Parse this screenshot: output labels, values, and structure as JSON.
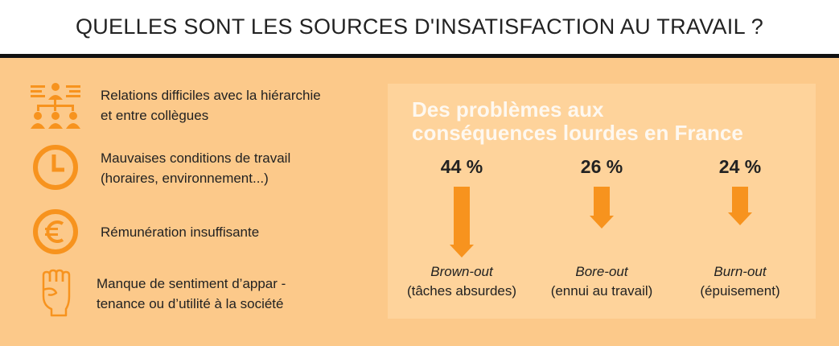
{
  "header": {
    "title": "QUELLES SONT LES SOURCES D'INSATISFACTION AU TRAVAIL ?"
  },
  "causes": [
    {
      "icon": "hierarchy-icon",
      "line1": "Relations difficiles avec la hiérarchie",
      "line2": "et entre collègues"
    },
    {
      "icon": "clock-icon",
      "line1": "Mauvaises conditions de travail",
      "line2": "(horaires, environnement...)"
    },
    {
      "icon": "euro-icon",
      "line1": "Rémunération insuffisante",
      "line2": ""
    },
    {
      "icon": "fist-icon",
      "line1": "Manque de sentiment d’appar -",
      "line2": "tenance ou d’utilité à la société"
    }
  ],
  "panel": {
    "title_line1": "Des problèmes aux",
    "title_line2": "conséquences lourdes en France"
  },
  "chart_data": {
    "type": "bar",
    "categories": [
      "Brown-out",
      "Bore-out",
      "Burn-out"
    ],
    "descriptions": [
      "(tâches absurdes)",
      "(ennui au travail)",
      "(épuisement)"
    ],
    "values": [
      44,
      26,
      24
    ],
    "labels": [
      "44 %",
      "26 %",
      "24 %"
    ],
    "unit": "%",
    "bar_color": "#f7931e"
  },
  "colors": {
    "accent": "#f7931e",
    "background": "#fcc98a",
    "panel": "#fed39b"
  }
}
